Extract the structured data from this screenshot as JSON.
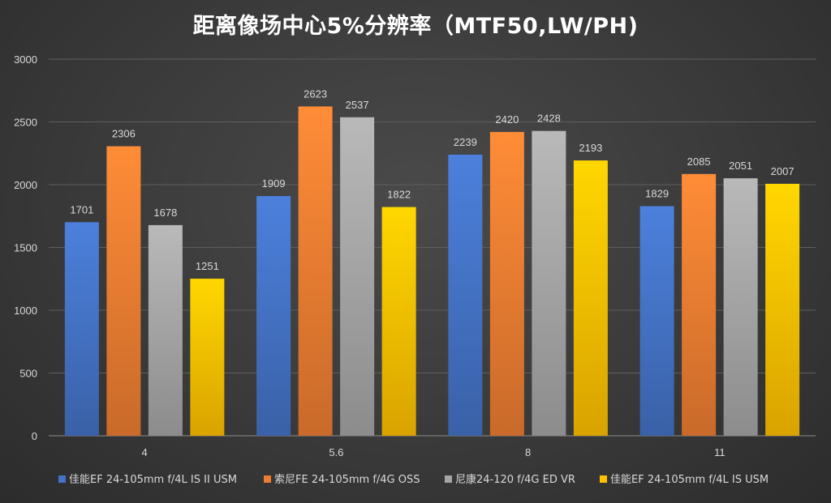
{
  "chart_data": {
    "type": "bar",
    "title": "距离像场中心5%分辨率（MTF50,LW/PH)",
    "xlabel": "",
    "ylabel": "",
    "categories": [
      "4",
      "5.6",
      "8",
      "11"
    ],
    "ylim": [
      0,
      3000
    ],
    "yticks": [
      0,
      500,
      1000,
      1500,
      2000,
      2500,
      3000
    ],
    "grid": true,
    "legend_position": "bottom",
    "series": [
      {
        "name": "佳能EF 24-105mm f/4L IS II USM",
        "values": [
          1701,
          1909,
          2239,
          1829
        ],
        "color": "#4472c4"
      },
      {
        "name": "索尼FE 24-105mm f/4G OSS",
        "values": [
          2306,
          2623,
          2420,
          2085
        ],
        "color": "#ed7d31"
      },
      {
        "name": "尼康24-120 f/4G ED VR",
        "values": [
          1678,
          2537,
          2428,
          2051
        ],
        "color": "#a5a5a5"
      },
      {
        "name": "佳能EF 24-105mm f/4L IS  USM",
        "values": [
          1251,
          1822,
          2193,
          2007
        ],
        "color": "#ffc000"
      }
    ]
  }
}
